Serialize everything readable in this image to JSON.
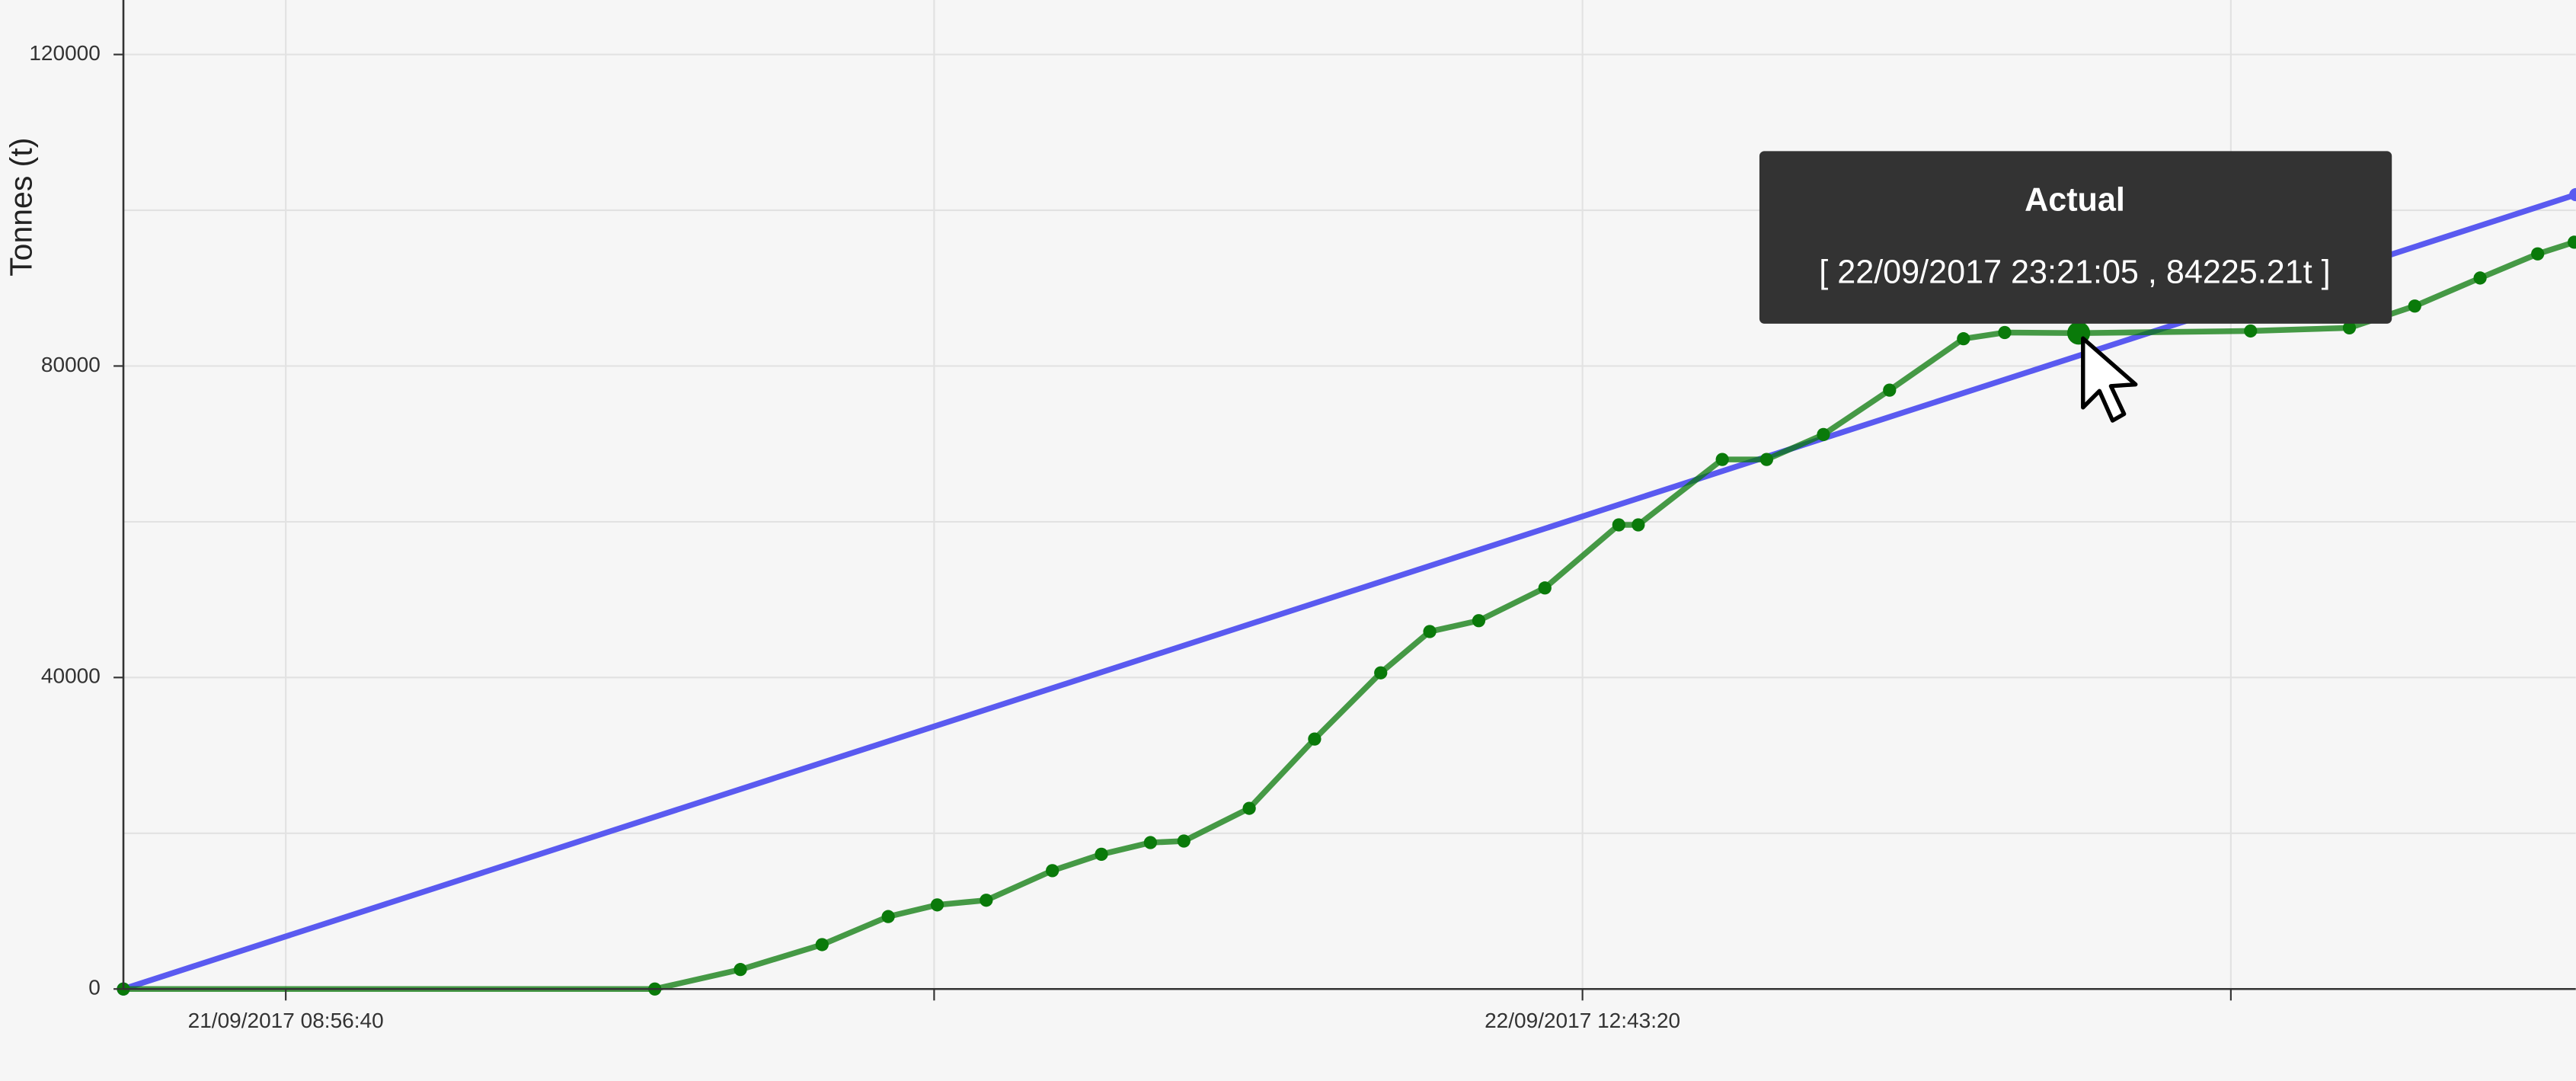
{
  "chart_data": {
    "type": "line",
    "y_label": "Tonnes (t)",
    "tooltip": "[ 22/09/2017 23:21:05 , 84225.21t ]",
    "xlim": [
      "21/09/2017 05:28:00",
      "23/09/2017 10:00:00"
    ],
    "xticks": [
      "21/09/2017 08:56:40",
      "22/09/2017 12:43:20"
    ],
    "ylim": [
      0,
      127000
    ],
    "yticks": [
      0,
      40000,
      80000,
      120000
    ],
    "grid": true,
    "series": [
      {
        "color": "#5a5af0",
        "x": [
          "21/09/2017 05:28:00",
          "23/09/2017 10:00:00"
        ],
        "values": [
          0,
          102000
        ]
      },
      {
        "name": "Actual",
        "color": "#0a7a0a",
        "x": [
          "21/09/2017 05:28:00",
          "21/09/2017 16:51:00",
          "21/09/2017 18:41:00",
          "21/09/2017 20:26:00",
          "21/09/2017 21:51:00",
          "21/09/2017 22:54:00",
          "21/09/2017 23:57:00",
          "22/09/2017 01:22:00",
          "22/09/2017 02:25:00",
          "22/09/2017 03:28:00",
          "22/09/2017 04:11:00",
          "22/09/2017 05:35:00",
          "22/09/2017 06:59:00",
          "22/09/2017 08:24:00",
          "22/09/2017 09:27:00",
          "22/09/2017 10:30:00",
          "22/09/2017 11:55:00",
          "22/09/2017 13:30:00",
          "22/09/2017 13:55:00",
          "22/09/2017 15:43:00",
          "22/09/2017 16:40:00",
          "22/09/2017 17:53:00",
          "22/09/2017 19:18:00",
          "22/09/2017 20:53:00",
          "22/09/2017 21:46:00",
          "22/09/2017 23:21:05",
          "23/09/2017 03:02:00",
          "23/09/2017 05:09:00",
          "23/09/2017 06:33:00",
          "23/09/2017 07:57:00",
          "23/09/2017 09:11:00",
          "23/09/2017 09:58:00"
        ],
        "values": [
          0,
          0,
          2500,
          5700,
          9300,
          10800,
          11400,
          15200,
          17300,
          18800,
          19000,
          23200,
          32100,
          40600,
          45900,
          47300,
          51500,
          59600,
          59600,
          68000,
          68000,
          71200,
          76900,
          83500,
          84300,
          84225.21,
          84500,
          84900,
          87700,
          91300,
          94400,
          95900
        ]
      }
    ]
  }
}
